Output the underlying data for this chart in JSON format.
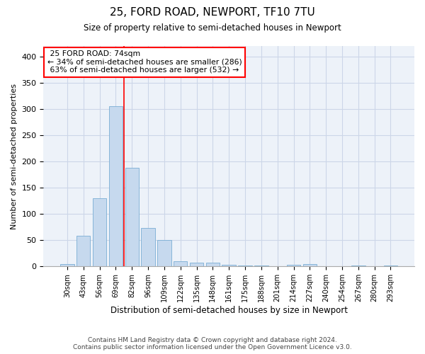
{
  "title": "25, FORD ROAD, NEWPORT, TF10 7TU",
  "subtitle": "Size of property relative to semi-detached houses in Newport",
  "xlabel": "Distribution of semi-detached houses by size in Newport",
  "ylabel": "Number of semi-detached properties",
  "categories": [
    "30sqm",
    "43sqm",
    "56sqm",
    "69sqm",
    "82sqm",
    "96sqm",
    "109sqm",
    "122sqm",
    "135sqm",
    "148sqm",
    "161sqm",
    "175sqm",
    "188sqm",
    "201sqm",
    "214sqm",
    "227sqm",
    "240sqm",
    "254sqm",
    "267sqm",
    "280sqm",
    "293sqm"
  ],
  "values": [
    5,
    58,
    130,
    305,
    188,
    73,
    50,
    10,
    7,
    7,
    3,
    2,
    2,
    0,
    3,
    4,
    0,
    0,
    2,
    0,
    2
  ],
  "bar_color": "#c6d9ee",
  "bar_edge_color": "#7aaed4",
  "vline_label": "25 FORD ROAD: 74sqm",
  "smaller_pct": "34%",
  "smaller_n": 286,
  "larger_pct": "63%",
  "larger_n": 532,
  "ylim": [
    0,
    420
  ],
  "yticks": [
    0,
    50,
    100,
    150,
    200,
    250,
    300,
    350,
    400
  ],
  "grid_color": "#ccd6e8",
  "background_color": "#edf2f9",
  "footer_line1": "Contains HM Land Registry data © Crown copyright and database right 2024.",
  "footer_line2": "Contains public sector information licensed under the Open Government Licence v3.0."
}
